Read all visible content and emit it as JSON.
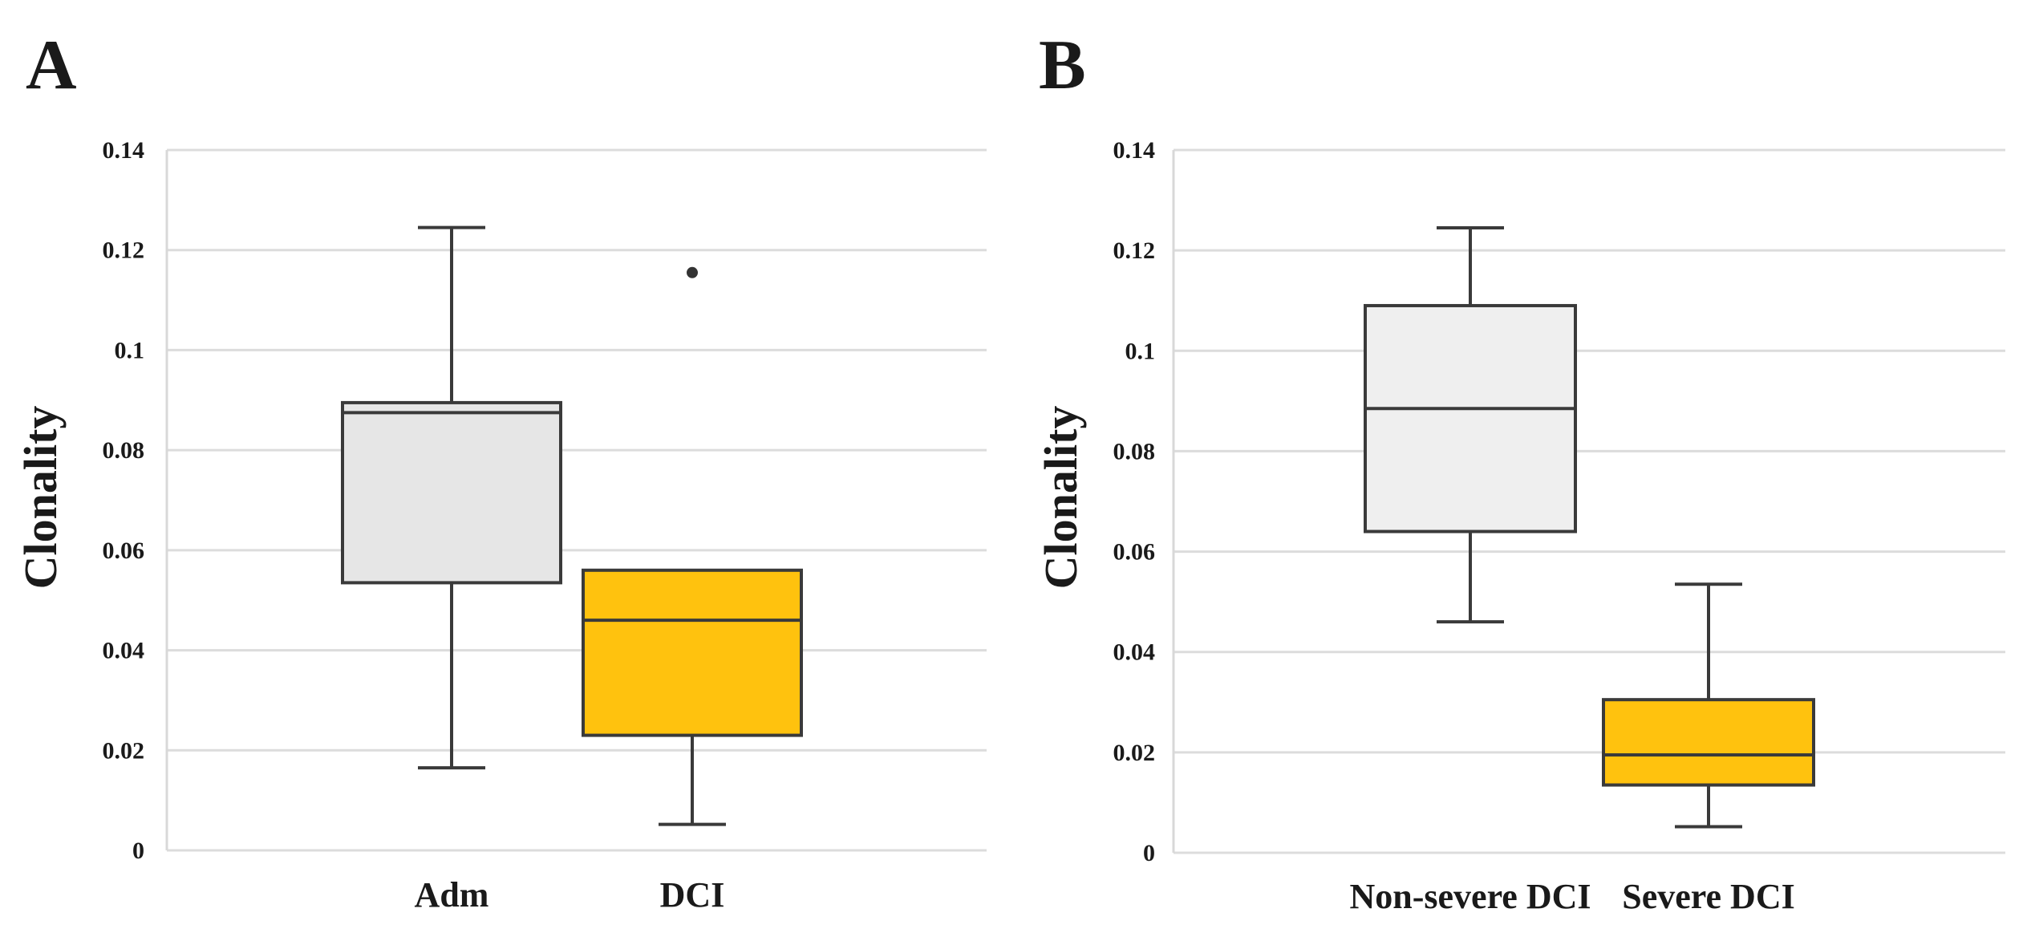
{
  "chart_data": [
    {
      "panel": "A",
      "type": "boxplot",
      "ylabel": "Clonality",
      "ylim": [
        0,
        0.14
      ],
      "yticks": [
        0,
        0.02,
        0.04,
        0.06,
        0.08,
        0.1,
        0.12,
        0.14
      ],
      "ytick_labels": [
        "0",
        "0.02",
        "0.04",
        "0.06",
        "0.08",
        "0.1",
        "0.12",
        "0.14"
      ],
      "grid": true,
      "categories": [
        "Adm",
        "DCI"
      ],
      "boxes": [
        {
          "label": "Adm",
          "min": 0.0165,
          "q1": 0.0535,
          "median": 0.0875,
          "q3": 0.0895,
          "max": 0.1245,
          "outliers": [],
          "color": "#e6e6e6"
        },
        {
          "label": "DCI",
          "min": 0.0052,
          "q1": 0.023,
          "median": 0.046,
          "q3": 0.056,
          "max": 0.056,
          "outliers": [
            0.1155
          ],
          "color": "#ffc20e"
        }
      ]
    },
    {
      "panel": "B",
      "type": "boxplot",
      "ylabel": "Clonality",
      "ylim": [
        0,
        0.14
      ],
      "yticks": [
        0,
        0.02,
        0.04,
        0.06,
        0.08,
        0.1,
        0.12,
        0.14
      ],
      "ytick_labels": [
        "0",
        "0.02",
        "0.04",
        "0.06",
        "0.08",
        "0.1",
        "0.12",
        "0.14"
      ],
      "grid": true,
      "categories": [
        "Non-severe DCI",
        "Severe DCI"
      ],
      "boxes": [
        {
          "label": "Non-severe DCI",
          "min": 0.046,
          "q1": 0.064,
          "median": 0.0885,
          "q3": 0.109,
          "max": 0.1245,
          "outliers": [],
          "color": "#efefef"
        },
        {
          "label": "Severe DCI",
          "min": 0.0052,
          "q1": 0.0135,
          "median": 0.0195,
          "q3": 0.0305,
          "max": 0.0535,
          "outliers": [],
          "color": "#ffc20e"
        }
      ]
    }
  ]
}
